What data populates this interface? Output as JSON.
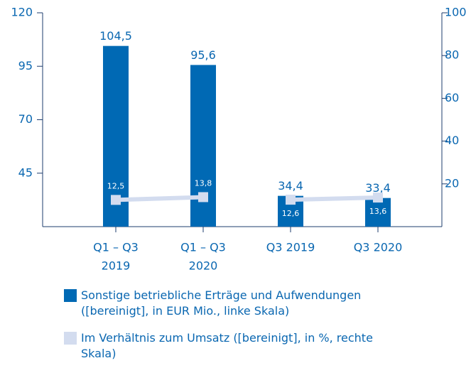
{
  "chart_data": {
    "type": "bar",
    "categories": [
      [
        "Q1 – Q3",
        "2019"
      ],
      [
        "Q1 – Q3",
        "2020"
      ],
      [
        "Q3 2019"
      ],
      [
        "Q3 2020"
      ]
    ],
    "series": [
      {
        "name": "Sonstige betriebliche Erträge und Aufwendungen ([bereinigt], in EUR Mio., linke Skala)",
        "color": "#0069b4",
        "type": "bar",
        "values": [
          104.5,
          95.6,
          34.4,
          33.4
        ],
        "value_labels": [
          "104,5",
          "95,6",
          "34,4",
          "33,4"
        ]
      },
      {
        "name": "Im Verhältnis zum Umsatz ([bereinigt], in %, rechte Skala)",
        "color": "#d3dcef",
        "type": "line",
        "axis": "y2",
        "values": [
          12.5,
          13.8,
          12.6,
          13.6
        ],
        "value_labels": [
          "12,5",
          "13,8",
          "12,6",
          "13,6"
        ]
      }
    ],
    "ylim": [
      20,
      120
    ],
    "yticks": [
      45,
      70,
      95,
      120
    ],
    "y2lim": [
      0,
      100
    ],
    "y2ticks": [
      20,
      40,
      60,
      80,
      100
    ]
  }
}
